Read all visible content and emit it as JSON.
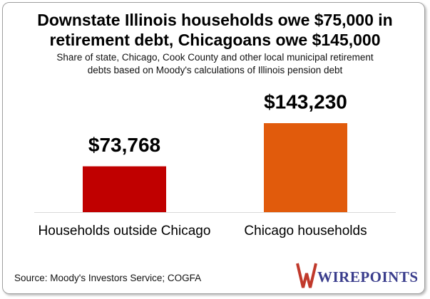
{
  "chart_data": {
    "type": "bar",
    "title": "Downstate Illinois households owe $75,000 in retirement debt, Chicagoans owe $145,000",
    "subtitle": "Share of state, Chicago, Cook County and other local municipal retirement debts based on Moody's calculations of Illinois pension debt",
    "categories": [
      "Households outside Chicago",
      "Chicago households"
    ],
    "values": [
      73768,
      143230
    ],
    "value_labels": [
      "$73,768",
      "$143,230"
    ],
    "colors": [
      "#c00000",
      "#e15b0c"
    ],
    "source": "Source: Moody's Investors Service; COGFA",
    "logo": "WIREPOINTS"
  }
}
